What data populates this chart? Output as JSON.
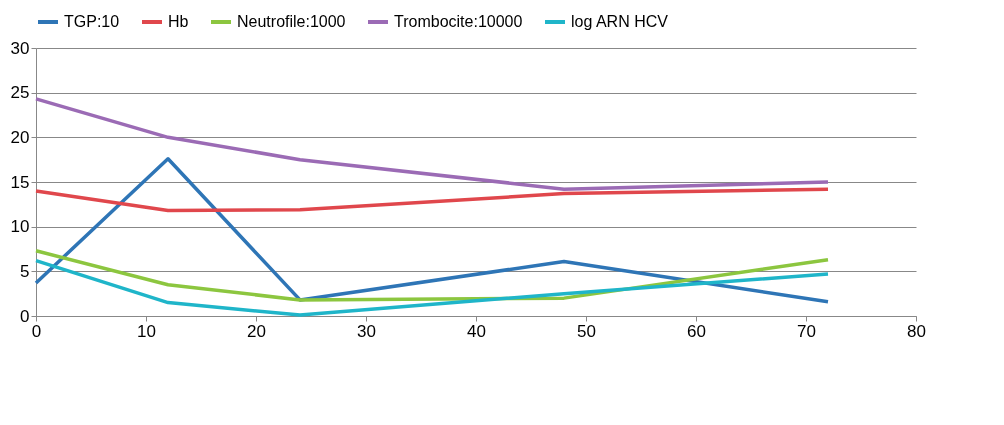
{
  "chart_data": {
    "type": "line",
    "x": [
      0,
      12,
      24,
      48,
      72
    ],
    "series": [
      {
        "name": "TGP:10",
        "color": "#2e75b6",
        "values": [
          3.7,
          17.6,
          1.8,
          6.1,
          1.6
        ]
      },
      {
        "name": "Hb",
        "color": "#e0474c",
        "values": [
          14,
          11.8,
          11.9,
          13.7,
          14.2
        ]
      },
      {
        "name": "Neutrofile:1000",
        "color": "#8cc63f",
        "values": [
          7.3,
          3.5,
          1.8,
          2.0,
          6.3
        ]
      },
      {
        "name": "Trombocite:10000",
        "color": "#9b6bb5",
        "values": [
          24.3,
          20,
          17.5,
          14.2,
          15
        ]
      },
      {
        "name": "log ARN HCV",
        "color": "#1fb5c9",
        "values": [
          6.2,
          1.5,
          0.1,
          2.5,
          4.7
        ]
      }
    ],
    "xlim": [
      0,
      80
    ],
    "xticks": [
      0,
      10,
      20,
      30,
      40,
      50,
      60,
      70,
      80
    ],
    "ylim": [
      0,
      30
    ],
    "yticks": [
      0,
      5,
      10,
      15,
      20,
      25,
      30
    ],
    "grid": "y",
    "legend": "top",
    "marker": "none",
    "line_style": "solid"
  }
}
